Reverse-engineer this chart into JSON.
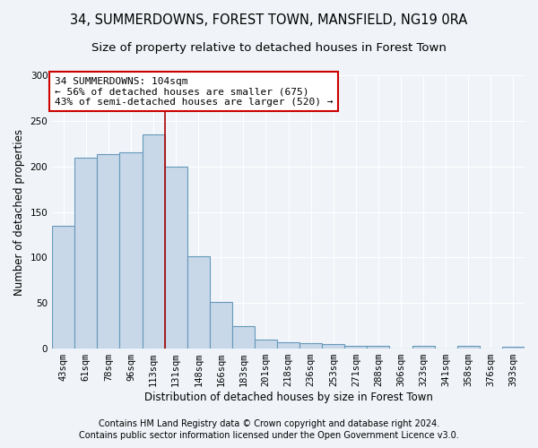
{
  "title1": "34, SUMMERDOWNS, FOREST TOWN, MANSFIELD, NG19 0RA",
  "title2": "Size of property relative to detached houses in Forest Town",
  "xlabel": "Distribution of detached houses by size in Forest Town",
  "ylabel": "Number of detached properties",
  "categories": [
    "43sqm",
    "61sqm",
    "78sqm",
    "96sqm",
    "113sqm",
    "131sqm",
    "148sqm",
    "166sqm",
    "183sqm",
    "201sqm",
    "218sqm",
    "236sqm",
    "253sqm",
    "271sqm",
    "288sqm",
    "306sqm",
    "323sqm",
    "341sqm",
    "358sqm",
    "376sqm",
    "393sqm"
  ],
  "values": [
    135,
    210,
    213,
    215,
    235,
    200,
    101,
    51,
    25,
    10,
    7,
    6,
    5,
    3,
    3,
    0,
    3,
    0,
    3,
    0,
    2
  ],
  "bar_color": "#c8d8e8",
  "bar_edge_color": "#6699bb",
  "red_line_x": 4.5,
  "annotation_line1": "34 SUMMERDOWNS: 104sqm",
  "annotation_line2": "← 56% of detached houses are smaller (675)",
  "annotation_line3": "43% of semi-detached houses are larger (520) →",
  "annotation_box_color": "#ffffff",
  "annotation_box_edge": "#cc0000",
  "ylim": [
    0,
    300
  ],
  "yticks": [
    0,
    50,
    100,
    150,
    200,
    250,
    300
  ],
  "footer1": "Contains HM Land Registry data © Crown copyright and database right 2024.",
  "footer2": "Contains public sector information licensed under the Open Government Licence v3.0.",
  "background_color": "#f0f4f8",
  "plot_background": "#f0f4f8",
  "grid_color": "#ffffff",
  "title_fontsize": 10.5,
  "subtitle_fontsize": 9.5,
  "axis_label_fontsize": 8.5,
  "tick_fontsize": 7.5,
  "footer_fontsize": 7.0,
  "annotation_fontsize": 8.0
}
